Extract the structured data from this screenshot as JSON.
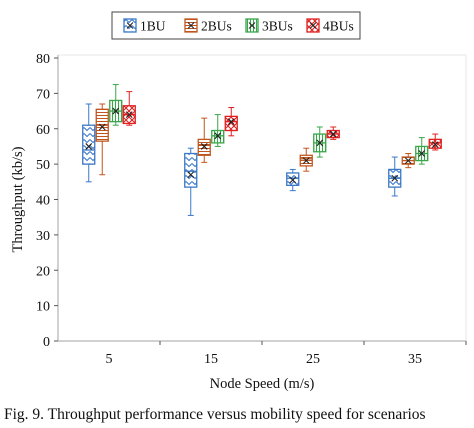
{
  "chart_data": {
    "type": "box",
    "title": "",
    "xlabel": "Node Speed (m/s)",
    "ylabel": "Throughput (kb/s)",
    "ylim": [
      0,
      80
    ],
    "yticks": [
      0,
      10,
      20,
      30,
      40,
      50,
      60,
      70,
      80
    ],
    "categories": [
      "5",
      "15",
      "25",
      "35"
    ],
    "grid": false,
    "legend_position": "top",
    "series": [
      {
        "name": "1BU",
        "color": "#3a78c8",
        "pattern": "zigzag",
        "boxes": [
          {
            "min": 45,
            "q1": 50,
            "median": 54,
            "mean": 55,
            "q3": 61,
            "max": 67
          },
          {
            "min": 35.5,
            "q1": 43.5,
            "median": 48,
            "mean": 47,
            "q3": 53,
            "max": 54.5
          },
          {
            "min": 42.5,
            "q1": 44,
            "median": 46,
            "mean": 45.5,
            "q3": 47.5,
            "max": 48.5
          },
          {
            "min": 41,
            "q1": 43.5,
            "median": 46,
            "mean": 46,
            "q3": 48.5,
            "max": 52
          }
        ]
      },
      {
        "name": "2BUs",
        "color": "#c0561e",
        "pattern": "horizontal-lines",
        "boxes": [
          {
            "min": 47,
            "q1": 56.5,
            "median": 61,
            "mean": 60.5,
            "q3": 65.5,
            "max": 67
          },
          {
            "min": 50.5,
            "q1": 52.5,
            "median": 55.5,
            "mean": 55,
            "q3": 57,
            "max": 63
          },
          {
            "min": 48,
            "q1": 49.5,
            "median": 51.5,
            "mean": 51,
            "q3": 52.5,
            "max": 54.5
          },
          {
            "min": 49,
            "q1": 50,
            "median": 51,
            "mean": 51,
            "q3": 52,
            "max": 53
          }
        ]
      },
      {
        "name": "3BUs",
        "color": "#3aa54a",
        "pattern": "vertical-lines",
        "boxes": [
          {
            "min": 61,
            "q1": 62,
            "median": 65,
            "mean": 65,
            "q3": 68,
            "max": 72.5
          },
          {
            "min": 55,
            "q1": 56,
            "median": 58,
            "mean": 58,
            "q3": 59.5,
            "max": 64
          },
          {
            "min": 52,
            "q1": 53.5,
            "median": 56,
            "mean": 56,
            "q3": 58.5,
            "max": 60.5
          },
          {
            "min": 50,
            "q1": 51,
            "median": 53,
            "mean": 53,
            "q3": 55,
            "max": 57.5
          }
        ]
      },
      {
        "name": "4BUs",
        "color": "#e02020",
        "pattern": "cross-hatch",
        "boxes": [
          {
            "min": 61,
            "q1": 61.5,
            "median": 64,
            "mean": 64,
            "q3": 66.5,
            "max": 70.5
          },
          {
            "min": 58,
            "q1": 59.5,
            "median": 62,
            "mean": 62,
            "q3": 63.5,
            "max": 66
          },
          {
            "min": 57,
            "q1": 57.5,
            "median": 58.5,
            "mean": 58.5,
            "q3": 59.5,
            "max": 60.5
          },
          {
            "min": 54,
            "q1": 54.5,
            "median": 56,
            "mean": 55.5,
            "q3": 57,
            "max": 58.5
          }
        ]
      }
    ]
  },
  "caption": "Fig. 9. Throughput performance versus mobility speed for scenarios"
}
